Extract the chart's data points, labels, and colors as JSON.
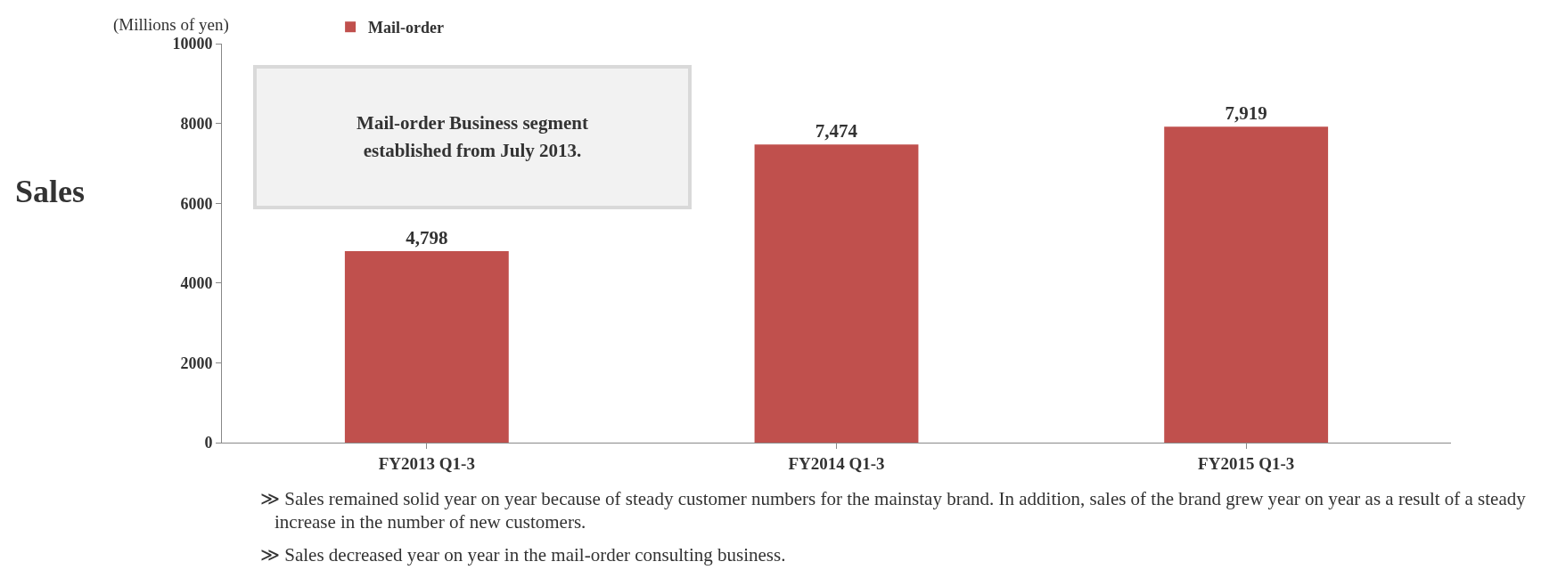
{
  "chart_data": {
    "type": "bar",
    "title": "Sales",
    "ylabel": "(Millions of yen)",
    "categories": [
      "FY2013 Q1-3",
      "FY2014 Q1-3",
      "FY2015 Q1-3"
    ],
    "series": [
      {
        "name": "Mail-order",
        "color": "#c0504d",
        "values": [
          4798,
          7474,
          7919
        ]
      }
    ],
    "value_labels": [
      "4,798",
      "7,474",
      "7,919"
    ],
    "ylim": [
      0,
      10000
    ],
    "yticks": [
      0,
      2000,
      4000,
      6000,
      8000,
      10000
    ],
    "grid": false,
    "legend": "top left",
    "annotations": [
      "Mail-order Business segment established from July 2013.",
      "≫ Sales remained solid year on year because of steady customer numbers for the mainstay brand. In addition, sales of the brand grew year on year as a result of a steady increase in the number of new customers.",
      "≫ Sales decreased year on year in the mail-order consulting business."
    ]
  }
}
